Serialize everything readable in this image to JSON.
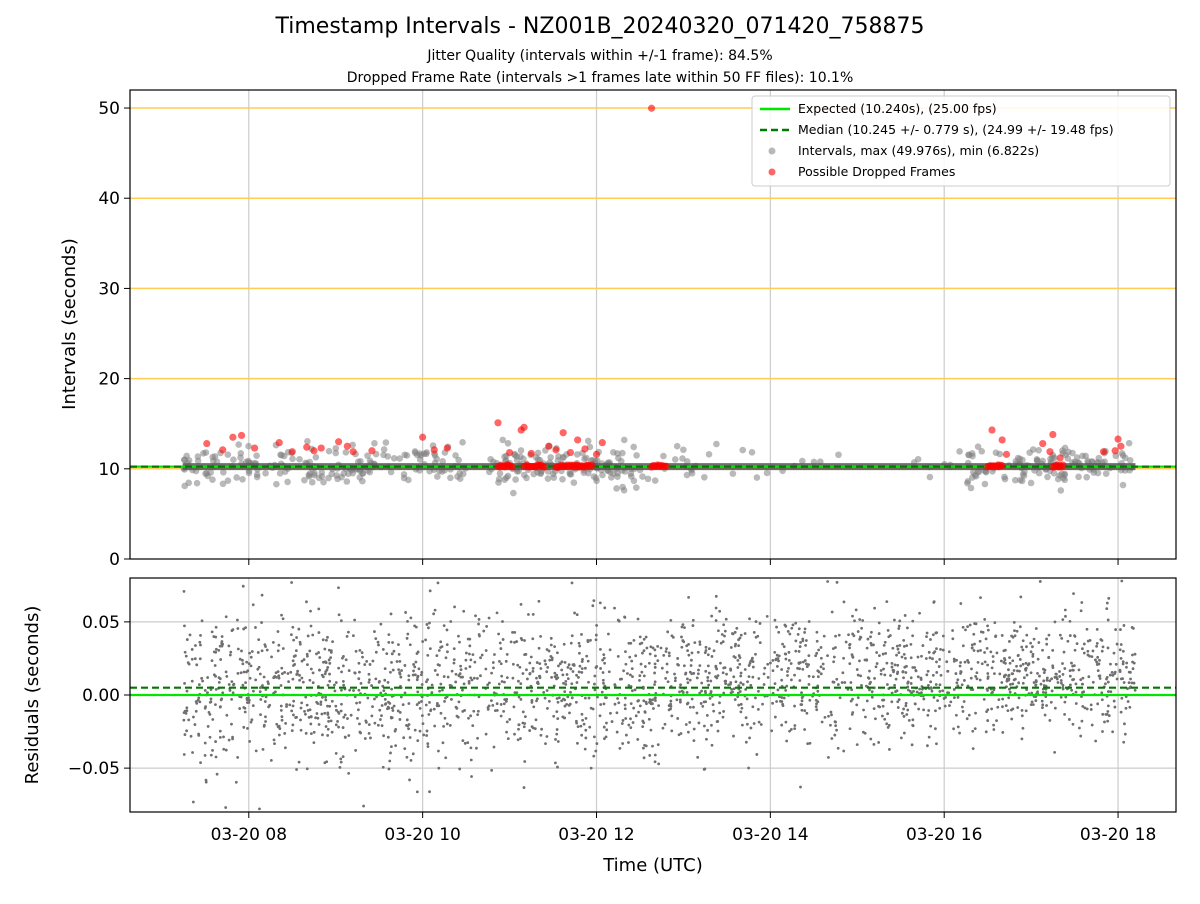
{
  "figure": {
    "title": "Timestamp Intervals - NZ001B_20240320_071420_758875",
    "subtitle_1": "Jitter Quality (intervals within +/-1 frame): 84.5%",
    "subtitle_2": "Dropped Frame Rate (intervals >1 frames late within 50 FF files): 10.1%"
  },
  "colors": {
    "expected": "#00e600",
    "median": "#007a00",
    "intervals": "#808080",
    "dropped": "#ff0000",
    "threshold": "#ffcc55",
    "grid": "#cccccc"
  },
  "chart_data": [
    {
      "type": "scatter",
      "xlabel": "",
      "ylabel": "Intervals (seconds)",
      "x_axis": {
        "type": "time",
        "min": "2024-03-20T06:38:00",
        "max": "2024-03-20T18:40:00",
        "tick_labels": [
          "03-20 08",
          "03-20 10",
          "03-20 12",
          "03-20 14",
          "03-20 16",
          "03-20 18"
        ]
      },
      "ylim": [
        0,
        52
      ],
      "yticks": [
        0,
        10,
        20,
        30,
        40,
        50
      ],
      "grid": true,
      "legend_placement": "top-right",
      "time_coverage": {
        "start": "2024-03-20T07:14:20",
        "end": "2024-03-20T18:12:00"
      },
      "threshold_lines": [
        10,
        20,
        30,
        40,
        50
      ],
      "expected_line": {
        "name": "Expected (10.240s), (25.00 fps)",
        "y": 10.24
      },
      "median_line": {
        "name": "Median (10.245 +/- 0.779 s), (24.99 +/- 19.48 fps)",
        "y": 10.245
      },
      "series": [
        {
          "name": "Intervals, max (49.976s), min (6.822s)",
          "max": 49.976,
          "min": 6.822
        },
        {
          "name": "Possible Dropped Frames",
          "points": [
            {
              "x": "2024-03-20T07:31",
              "y": 12.8
            },
            {
              "x": "2024-03-20T07:42",
              "y": 12.1
            },
            {
              "x": "2024-03-20T07:49",
              "y": 13.5
            },
            {
              "x": "2024-03-20T07:55",
              "y": 13.7
            },
            {
              "x": "2024-03-20T08:04",
              "y": 12.3
            },
            {
              "x": "2024-03-20T08:21",
              "y": 12.9
            },
            {
              "x": "2024-03-20T08:30",
              "y": 11.9
            },
            {
              "x": "2024-03-20T08:40",
              "y": 12.4
            },
            {
              "x": "2024-03-20T08:45",
              "y": 12.0
            },
            {
              "x": "2024-03-20T08:50",
              "y": 12.3
            },
            {
              "x": "2024-03-20T09:02",
              "y": 13.0
            },
            {
              "x": "2024-03-20T09:08",
              "y": 12.5
            },
            {
              "x": "2024-03-20T09:12",
              "y": 11.9
            },
            {
              "x": "2024-03-20T09:25",
              "y": 12.0
            },
            {
              "x": "2024-03-20T10:00",
              "y": 13.5
            },
            {
              "x": "2024-03-20T10:08",
              "y": 12.1
            },
            {
              "x": "2024-03-20T10:17",
              "y": 12.3
            },
            {
              "x": "2024-03-20T10:52",
              "y": 15.1
            },
            {
              "x": "2024-03-20T11:00",
              "y": 11.8
            },
            {
              "x": "2024-03-20T11:08",
              "y": 14.3
            },
            {
              "x": "2024-03-20T11:10",
              "y": 14.6
            },
            {
              "x": "2024-03-20T11:15",
              "y": 11.7
            },
            {
              "x": "2024-03-20T11:27",
              "y": 12.5
            },
            {
              "x": "2024-03-20T11:32",
              "y": 12.1
            },
            {
              "x": "2024-03-20T11:37",
              "y": 14.0
            },
            {
              "x": "2024-03-20T11:42",
              "y": 11.8
            },
            {
              "x": "2024-03-20T11:47",
              "y": 13.2
            },
            {
              "x": "2024-03-20T11:52",
              "y": 12.2
            },
            {
              "x": "2024-03-20T12:00",
              "y": 11.6
            },
            {
              "x": "2024-03-20T12:04",
              "y": 12.9
            },
            {
              "x": "2024-03-20T12:38",
              "y": 49.976
            },
            {
              "x": "2024-03-20T16:33",
              "y": 14.3
            },
            {
              "x": "2024-03-20T16:40",
              "y": 13.2
            },
            {
              "x": "2024-03-20T16:43",
              "y": 11.6
            },
            {
              "x": "2024-03-20T17:08",
              "y": 12.8
            },
            {
              "x": "2024-03-20T17:13",
              "y": 11.9
            },
            {
              "x": "2024-03-20T17:15",
              "y": 13.8
            },
            {
              "x": "2024-03-20T17:20",
              "y": 11.2
            },
            {
              "x": "2024-03-20T17:50",
              "y": 11.9
            },
            {
              "x": "2024-03-20T17:58",
              "y": 12.0
            },
            {
              "x": "2024-03-20T18:00",
              "y": 13.3
            },
            {
              "x": "2024-03-20T18:02",
              "y": 12.5
            }
          ],
          "dense_clusters": [
            {
              "from": "2024-03-20T10:52",
              "to": "2024-03-20T11:02",
              "y": 10.3
            },
            {
              "from": "2024-03-20T11:10",
              "to": "2024-03-20T11:24",
              "y": 10.3
            },
            {
              "from": "2024-03-20T11:32",
              "to": "2024-03-20T11:57",
              "y": 10.3
            },
            {
              "from": "2024-03-20T12:38",
              "to": "2024-03-20T12:48",
              "y": 10.3
            },
            {
              "from": "2024-03-20T16:30",
              "to": "2024-03-20T16:40",
              "y": 10.3
            },
            {
              "from": "2024-03-20T17:15",
              "to": "2024-03-20T17:22",
              "y": 10.3
            }
          ]
        }
      ]
    },
    {
      "type": "scatter",
      "xlabel": "Time (UTC)",
      "ylabel": "Residuals (seconds)",
      "ylim": [
        -0.08,
        0.08
      ],
      "yticks": [
        -0.05,
        0.0,
        0.05
      ],
      "ytick_labels": [
        "−0.05",
        "0.00",
        "0.05"
      ],
      "grid": true,
      "expected_y": 0.0,
      "median_y": 0.005
    }
  ]
}
